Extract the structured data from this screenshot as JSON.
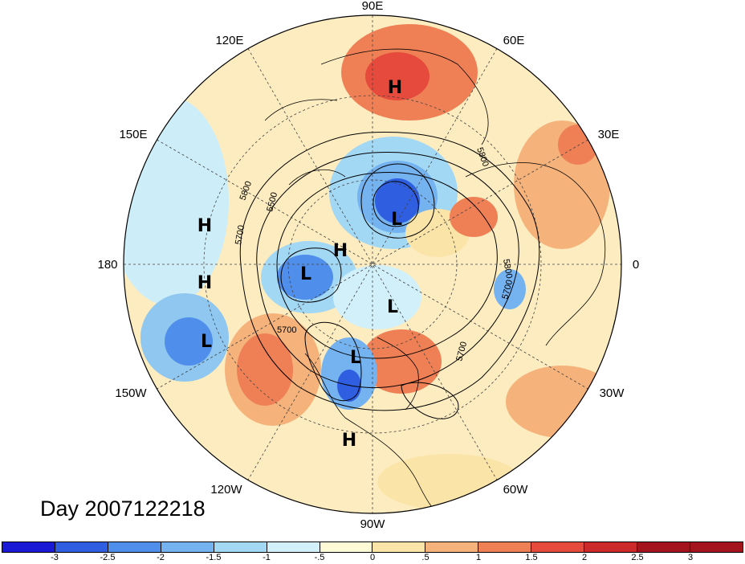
{
  "title": "Day 2007122218",
  "longitude_labels": {
    "top": "90E",
    "ne1": "60E",
    "ne2": "30E",
    "right": "0",
    "se1": "30W",
    "se2": "60W",
    "bottom": "90W",
    "sw1": "120W",
    "sw2": "150W",
    "left": "180",
    "nw1": "150E",
    "nw2": "120E"
  },
  "pressure_centers": {
    "h_siberia": "H",
    "l_arctic": "L",
    "h_pole": "H",
    "h_pacific1": "H",
    "h_pacific2": "H",
    "l_alaska": "L",
    "l_hudson": "L",
    "l_gulf_alaska": "L",
    "l_great_lakes": "L",
    "h_mexico": "H"
  },
  "contour_labels": [
    "5800",
    "5500",
    "5700",
    "5800",
    "5700",
    "5800",
    "5700",
    "5700"
  ],
  "colorbar": {
    "labels": [
      "-3",
      "-2.5",
      "-2",
      "-1.5",
      "-1",
      "-.5",
      "0",
      ".5",
      "1",
      "1.5",
      "2",
      "2.5",
      "3"
    ],
    "colors": [
      "#1a1ad6",
      "#2f5fe0",
      "#4f8eea",
      "#74b2f0",
      "#a3d8f5",
      "#d2f0fa",
      "#fdfad6",
      "#fbe4a8",
      "#f5b27a",
      "#ef8056",
      "#e64a3c",
      "#cc2a2a",
      "#a3141c",
      "#a3141c"
    ]
  }
}
